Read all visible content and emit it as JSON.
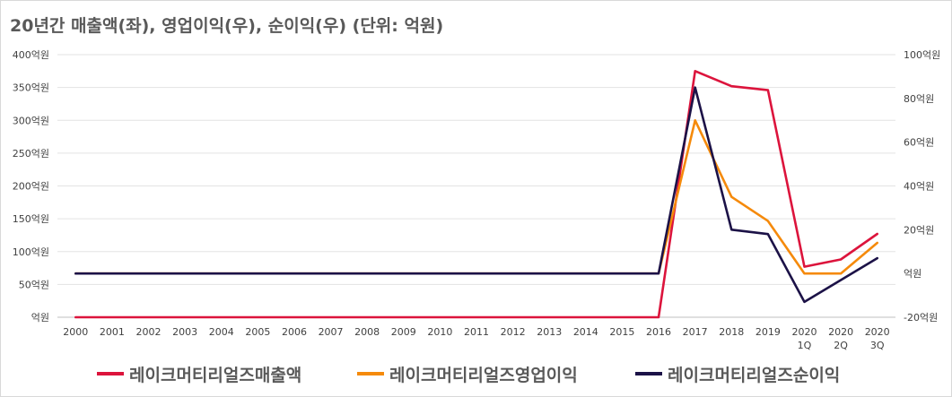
{
  "chart_data": {
    "type": "line",
    "title": "20년간 매출액(좌), 영업이익(우), 순이익(우) (단위: 억원)",
    "categories": [
      "2000",
      "2001",
      "2002",
      "2003",
      "2004",
      "2005",
      "2006",
      "2007",
      "2008",
      "2009",
      "2010",
      "2011",
      "2012",
      "2013",
      "2014",
      "2015",
      "2016",
      "2017",
      "2018",
      "2019",
      "2020 1Q",
      "2020 2Q",
      "2020 3Q"
    ],
    "left_axis": {
      "ticks": [
        "억원",
        "50억원",
        "100억원",
        "150억원",
        "200억원",
        "250억원",
        "300억원",
        "350억원",
        "400억원"
      ],
      "ylim": [
        0,
        400
      ]
    },
    "right_axis": {
      "ticks": [
        "-20억원",
        "억원",
        "20억원",
        "40억원",
        "60억원",
        "80억원",
        "100억원"
      ],
      "ylim": [
        -20,
        100
      ]
    },
    "grid": true,
    "legend_position": "bottom",
    "series": [
      {
        "name": "레이크머티리얼즈매출액",
        "axis": "left",
        "color": "#dc143c",
        "values": [
          0,
          0,
          0,
          0,
          0,
          0,
          0,
          0,
          0,
          0,
          0,
          0,
          0,
          0,
          0,
          0,
          0,
          375,
          352,
          346,
          77,
          88,
          127
        ]
      },
      {
        "name": "레이크머티리얼즈영업이익",
        "axis": "right",
        "color": "#f58a0b",
        "values": [
          0,
          0,
          0,
          0,
          0,
          0,
          0,
          0,
          0,
          0,
          0,
          0,
          0,
          0,
          0,
          0,
          0,
          70,
          35,
          24,
          0,
          0,
          14
        ]
      },
      {
        "name": "레이크머티리얼즈순이익",
        "axis": "right",
        "color": "#1c1247",
        "values": [
          0,
          0,
          0,
          0,
          0,
          0,
          0,
          0,
          0,
          0,
          0,
          0,
          0,
          0,
          0,
          0,
          0,
          85,
          20,
          18,
          -13,
          -3,
          7
        ]
      }
    ]
  }
}
